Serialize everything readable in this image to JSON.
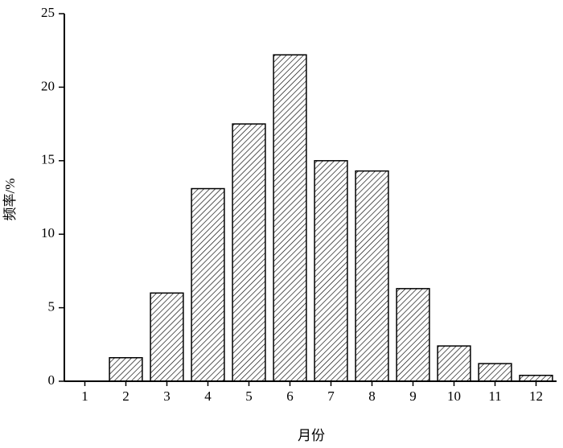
{
  "chart_data": {
    "type": "bar",
    "xlabel": "月份",
    "ylabel": "频率/%",
    "categories": [
      "1",
      "2",
      "3",
      "4",
      "5",
      "6",
      "7",
      "8",
      "9",
      "10",
      "11",
      "12"
    ],
    "values": [
      0,
      1.6,
      6.0,
      13.1,
      17.5,
      22.2,
      15.0,
      14.3,
      6.3,
      2.4,
      1.2,
      0.4
    ],
    "color": "#000000",
    "ylim": [
      0,
      25
    ],
    "yticks": [
      0,
      5,
      10,
      15,
      20,
      25
    ]
  }
}
